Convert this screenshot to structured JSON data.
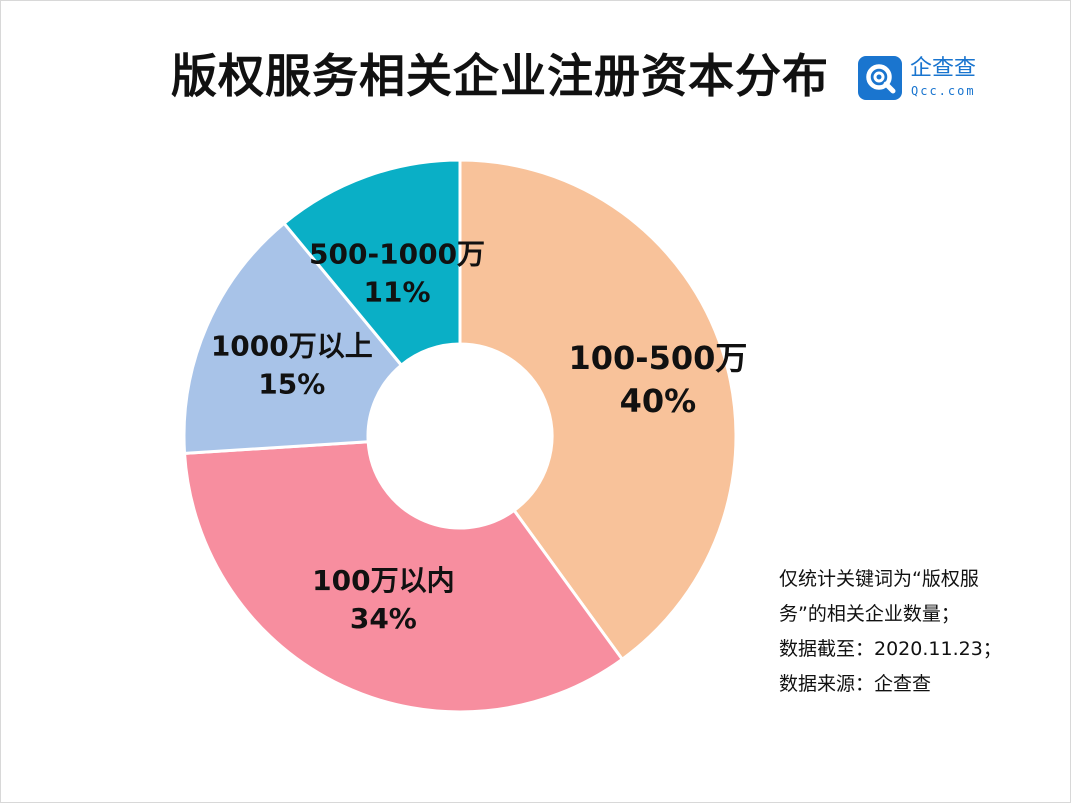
{
  "title": "版权服务相关企业注册资本分布",
  "logo": {
    "cn_text": "企查查",
    "en_text": "Qcc.com",
    "color": "#1a75cf",
    "icon": "magnifier-q-icon"
  },
  "chart_data": {
    "type": "pie",
    "variant": "donut",
    "title": "版权服务相关企业注册资本分布",
    "slices": [
      {
        "label": "100-500万",
        "value": 40,
        "percent_text": "40%",
        "color": "#f8c29a"
      },
      {
        "label": "100万以内",
        "value": 34,
        "percent_text": "34%",
        "color": "#f78e9f"
      },
      {
        "label": "1000万以上",
        "value": 15,
        "percent_text": "15%",
        "color": "#a8c3e8"
      },
      {
        "label": "500-1000万",
        "value": 11,
        "percent_text": "11%",
        "color": "#0aafc6"
      }
    ],
    "start_angle_deg": 0,
    "direction": "clockwise",
    "legend": "none"
  },
  "notes": [
    "仅统计关键词为“版权服",
    "务”的相关企业数量；",
    "数据截至：2020.11.23；",
    "数据来源：企查查"
  ]
}
